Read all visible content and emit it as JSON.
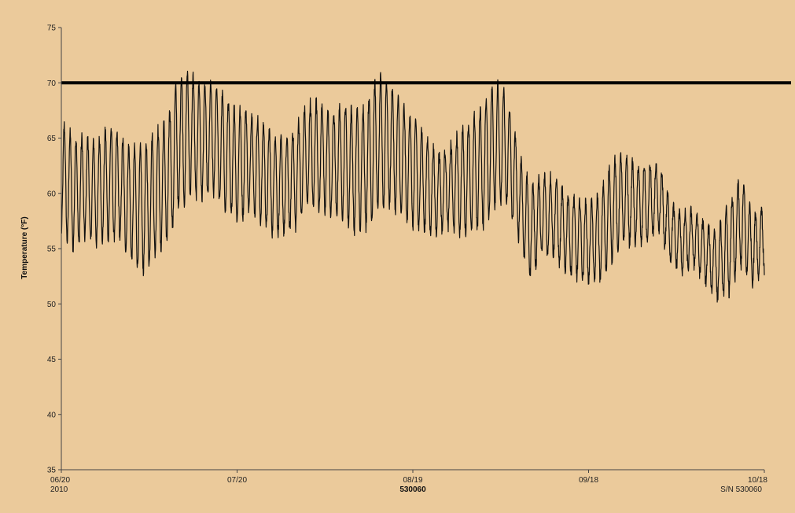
{
  "chart_data": {
    "type": "line",
    "ylabel": "Temperature  (°F)",
    "ylim": [
      35,
      75
    ],
    "yticks": [
      35,
      40,
      45,
      50,
      55,
      60,
      65,
      70,
      75
    ],
    "x_range": [
      "2010-06-20",
      "2010-10-18"
    ],
    "xticks": [
      {
        "date": "2010-06-20",
        "label": "06/20",
        "sublabel": "2010"
      },
      {
        "date": "2010-07-20",
        "label": "07/20",
        "sublabel": ""
      },
      {
        "date": "2010-08-19",
        "label": "08/19",
        "sublabel": "530060"
      },
      {
        "date": "2010-09-18",
        "label": "09/18",
        "sublabel": ""
      },
      {
        "date": "2010-10-18",
        "label": "10/18",
        "sublabel": "S/N 530060"
      }
    ],
    "grid": false,
    "reference_line": {
      "y": 70,
      "color": "#000000"
    },
    "line_color": "#111111",
    "background": "#ebca9b",
    "series": [
      {
        "x": [
          "2010-06-20",
          "2010-06-22",
          "2010-06-24",
          "2010-06-26",
          "2010-06-28",
          "2010-06-30",
          "2010-07-02",
          "2010-07-04",
          "2010-07-06",
          "2010-07-08",
          "2010-07-10",
          "2010-07-12",
          "2010-07-14",
          "2010-07-16",
          "2010-07-18",
          "2010-07-20",
          "2010-07-22",
          "2010-07-24",
          "2010-07-26",
          "2010-07-28",
          "2010-07-30",
          "2010-08-01",
          "2010-08-03",
          "2010-08-05",
          "2010-08-07",
          "2010-08-09",
          "2010-08-11",
          "2010-08-13",
          "2010-08-15",
          "2010-08-17",
          "2010-08-19",
          "2010-08-21",
          "2010-08-23",
          "2010-08-25",
          "2010-08-27",
          "2010-08-29",
          "2010-08-31",
          "2010-09-02",
          "2010-09-04",
          "2010-09-06",
          "2010-09-08",
          "2010-09-10",
          "2010-09-12",
          "2010-09-14",
          "2010-09-16",
          "2010-09-18",
          "2010-09-20",
          "2010-09-22",
          "2010-09-24",
          "2010-09-26",
          "2010-09-28",
          "2010-09-30",
          "2010-10-02",
          "2010-10-04",
          "2010-10-06",
          "2010-10-08",
          "2010-10-10",
          "2010-10-12",
          "2010-10-14",
          "2010-10-16",
          "2010-10-18"
        ],
        "mid": [
          61.5,
          60,
          60.5,
          60,
          61,
          60.5,
          59,
          58.5,
          60,
          61,
          64.5,
          65.5,
          64.5,
          65,
          63.5,
          62.5,
          63,
          62,
          61,
          60.5,
          61.5,
          63.5,
          63.5,
          62.5,
          63,
          62,
          62.5,
          64.5,
          64.5,
          63,
          62,
          61,
          60,
          60.5,
          61,
          61.5,
          62.5,
          64.5,
          64,
          60,
          56.5,
          58,
          58,
          56.5,
          56,
          55.5,
          56,
          58.5,
          59.5,
          59,
          59,
          59.5,
          56.5,
          55.5,
          56,
          54.5,
          53.5,
          55,
          57.5,
          55,
          56
        ],
        "amp": [
          5,
          5,
          4.5,
          4.5,
          5,
          4.5,
          5,
          5.5,
          5.5,
          5.5,
          6,
          5.5,
          5,
          5,
          5,
          5,
          4.5,
          4.5,
          4.5,
          4,
          4.5,
          4.5,
          5,
          4.5,
          5,
          5.5,
          5.5,
          6,
          5.5,
          5,
          5,
          4.5,
          3.5,
          3.5,
          4.5,
          5,
          5.5,
          5.5,
          5,
          4,
          4,
          3.5,
          3.5,
          3.5,
          3.5,
          3.5,
          4,
          4.5,
          4,
          3.5,
          3.5,
          3,
          2.5,
          2.5,
          2.5,
          2.5,
          3,
          4,
          4,
          3,
          3
        ]
      }
    ]
  },
  "footer": {
    "sn_bold": "530060"
  }
}
